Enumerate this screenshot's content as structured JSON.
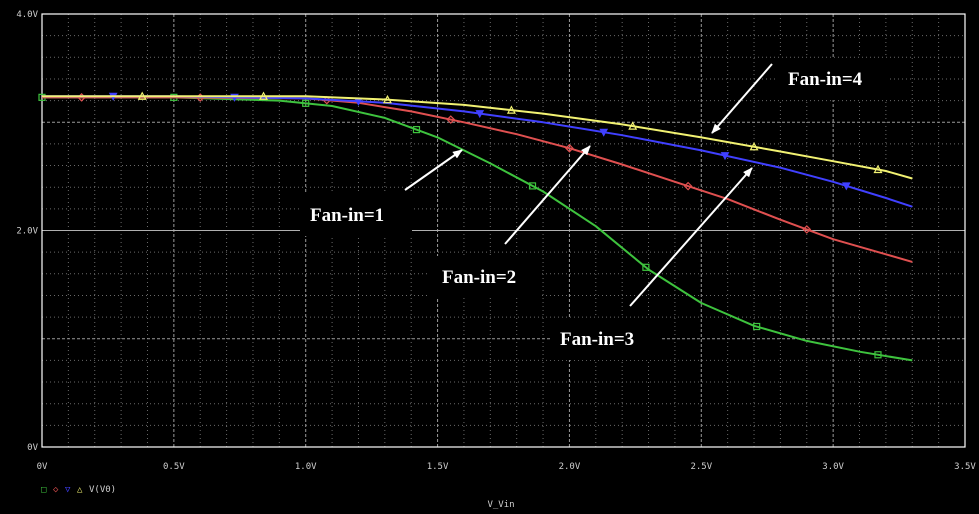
{
  "chart_data": {
    "type": "line",
    "xlabel": "V_Vin",
    "ylabel": "",
    "xlim": [
      0,
      3.5
    ],
    "ylim": [
      0,
      4.0
    ],
    "x_ticks": [
      "0V",
      "0.5V",
      "1.0V",
      "1.5V",
      "2.0V",
      "2.5V",
      "3.0V",
      "3.5V"
    ],
    "y_ticks": [
      "0V",
      "2.0V",
      "4.0V"
    ],
    "grid": true,
    "background": "#000000",
    "legend": {
      "placement": "bottom-left",
      "text": "V(V0)",
      "glyphs": [
        "□",
        "◇",
        "▽",
        "△"
      ]
    },
    "series": [
      {
        "color": "#3ec33e",
        "marker": "square",
        "points": [
          [
            0,
            3.23
          ],
          [
            0.5,
            3.23
          ],
          [
            0.9,
            3.2
          ],
          [
            1.1,
            3.15
          ],
          [
            1.3,
            3.04
          ],
          [
            1.5,
            2.86
          ],
          [
            1.7,
            2.62
          ],
          [
            1.9,
            2.36
          ],
          [
            2.1,
            2.04
          ],
          [
            2.3,
            1.64
          ],
          [
            2.5,
            1.33
          ],
          [
            2.7,
            1.12
          ],
          [
            2.9,
            0.98
          ],
          [
            3.1,
            0.88
          ],
          [
            3.3,
            0.8
          ]
        ],
        "markers_x": [
          0,
          0.5,
          1.0,
          1.42,
          1.86,
          2.29,
          2.71,
          3.17
        ]
      },
      {
        "color": "#e05050",
        "marker": "diamond",
        "points": [
          [
            0,
            3.23
          ],
          [
            0.5,
            3.23
          ],
          [
            1.0,
            3.22
          ],
          [
            1.2,
            3.18
          ],
          [
            1.4,
            3.1
          ],
          [
            1.6,
            3.0
          ],
          [
            1.8,
            2.89
          ],
          [
            2.0,
            2.76
          ],
          [
            2.2,
            2.61
          ],
          [
            2.4,
            2.45
          ],
          [
            2.6,
            2.29
          ],
          [
            2.8,
            2.1
          ],
          [
            3.0,
            1.92
          ],
          [
            3.2,
            1.78
          ],
          [
            3.3,
            1.71
          ]
        ],
        "markers_x": [
          0.15,
          0.6,
          1.08,
          1.55,
          2.0,
          2.45,
          2.9
        ]
      },
      {
        "color": "#4040ff",
        "marker": "triangle-down",
        "points": [
          [
            0,
            3.24
          ],
          [
            0.5,
            3.24
          ],
          [
            1.0,
            3.22
          ],
          [
            1.3,
            3.18
          ],
          [
            1.6,
            3.1
          ],
          [
            1.9,
            3.0
          ],
          [
            2.2,
            2.88
          ],
          [
            2.5,
            2.74
          ],
          [
            2.8,
            2.58
          ],
          [
            3.0,
            2.45
          ],
          [
            3.2,
            2.3
          ],
          [
            3.3,
            2.22
          ]
        ],
        "markers_x": [
          0.27,
          0.73,
          1.2,
          1.66,
          2.13,
          2.59,
          3.05
        ]
      },
      {
        "color": "#f2f272",
        "marker": "triangle-up",
        "points": [
          [
            0,
            3.24
          ],
          [
            0.5,
            3.24
          ],
          [
            1.0,
            3.24
          ],
          [
            1.3,
            3.21
          ],
          [
            1.6,
            3.16
          ],
          [
            1.9,
            3.08
          ],
          [
            2.2,
            2.98
          ],
          [
            2.5,
            2.86
          ],
          [
            2.8,
            2.73
          ],
          [
            3.0,
            2.64
          ],
          [
            3.2,
            2.55
          ],
          [
            3.3,
            2.48
          ]
        ],
        "markers_x": [
          0.38,
          0.84,
          1.31,
          1.78,
          2.24,
          2.7,
          3.17
        ]
      }
    ],
    "annotations": [
      {
        "text": "Fan-in=1",
        "arrow_to": [
          1.6,
          2.64
        ]
      },
      {
        "text": "Fan-in=2",
        "arrow_to": [
          2.1,
          2.76
        ]
      },
      {
        "text": "Fan-in=3",
        "arrow_to": [
          2.7,
          2.58
        ]
      },
      {
        "text": "Fan-in=4",
        "arrow_to": [
          2.6,
          2.73
        ]
      }
    ]
  }
}
